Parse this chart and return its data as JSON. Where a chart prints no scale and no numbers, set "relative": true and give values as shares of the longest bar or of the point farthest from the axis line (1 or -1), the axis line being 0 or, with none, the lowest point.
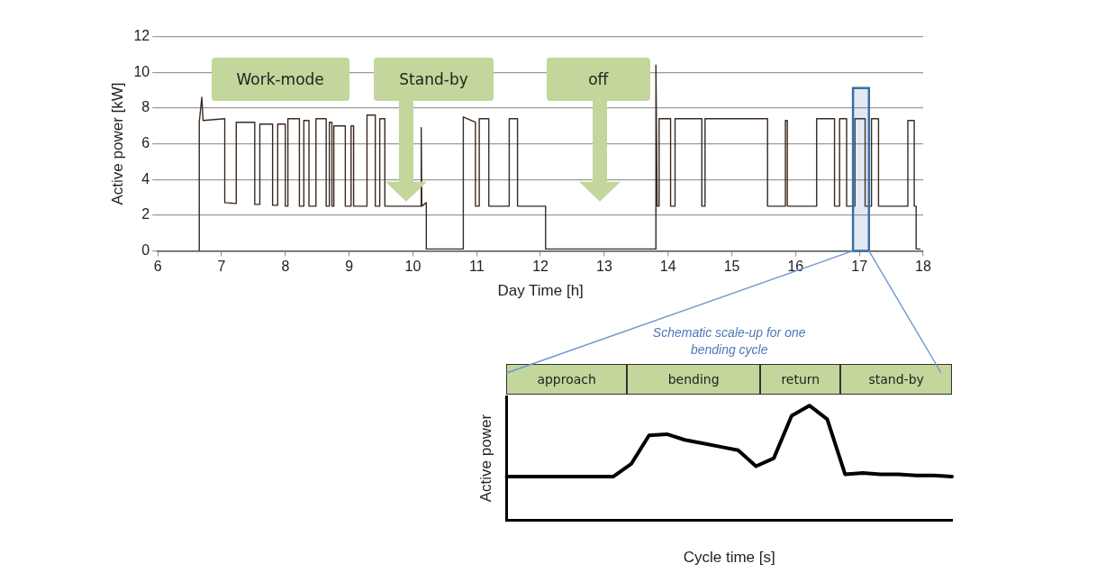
{
  "chart_data": [
    {
      "type": "line",
      "xlabel": "Day Time [h]",
      "ylabel": "Active power [kW]",
      "color": "#3a2a20",
      "marker": "none",
      "grid": "y",
      "xlim": [
        6,
        18
      ],
      "xticks": [
        6,
        7,
        8,
        9,
        10,
        11,
        12,
        13,
        14,
        15,
        16,
        17,
        18
      ],
      "ylim": [
        0,
        12
      ],
      "yticks": [
        0,
        2,
        4,
        6,
        8,
        10,
        12
      ],
      "x": [
        6.65,
        6.65,
        6.69,
        6.71,
        7.05,
        7.05,
        7.23,
        7.23,
        7.52,
        7.52,
        7.6,
        7.6,
        7.8,
        7.8,
        7.88,
        7.88,
        8.0,
        8.0,
        8.04,
        8.04,
        8.22,
        8.22,
        8.29,
        8.29,
        8.37,
        8.37,
        8.48,
        8.48,
        8.64,
        8.64,
        8.69,
        8.69,
        8.73,
        8.73,
        8.76,
        8.76,
        8.94,
        8.94,
        9.03,
        9.03,
        9.07,
        9.07,
        9.28,
        9.28,
        9.41,
        9.41,
        9.48,
        9.48,
        9.56,
        9.56,
        10.13,
        10.13,
        10.14,
        10.21,
        10.21,
        10.79,
        10.79,
        10.98,
        10.98,
        11.04,
        11.04,
        11.19,
        11.19,
        11.51,
        11.51,
        11.64,
        11.64,
        12.08,
        12.08,
        13.81,
        13.81,
        13.83,
        13.86,
        13.86,
        14.04,
        14.04,
        14.11,
        14.11,
        14.53,
        14.53,
        14.58,
        14.58,
        15.56,
        15.56,
        15.84,
        15.84,
        15.87,
        15.87,
        16.33,
        16.33,
        16.61,
        16.61,
        16.69,
        16.69,
        16.8,
        16.8,
        16.93,
        16.93,
        17.09,
        17.09,
        17.19,
        17.19,
        17.3,
        17.3,
        17.76,
        17.76,
        17.86,
        17.86,
        17.89,
        17.89,
        17.95
      ],
      "values": [
        0,
        7.2,
        8.6,
        7.3,
        7.4,
        2.7,
        2.65,
        7.2,
        7.2,
        2.6,
        2.6,
        7.1,
        7.1,
        2.55,
        2.55,
        7.1,
        7.1,
        2.5,
        2.5,
        7.4,
        7.4,
        2.5,
        2.5,
        7.3,
        7.3,
        2.5,
        2.5,
        7.4,
        7.4,
        2.5,
        2.5,
        7.2,
        7.2,
        2.5,
        2.5,
        7.0,
        7.0,
        2.5,
        2.5,
        7.0,
        7.0,
        2.5,
        2.5,
        7.6,
        7.6,
        2.5,
        2.5,
        7.4,
        7.4,
        2.5,
        2.5,
        6.9,
        2.5,
        2.7,
        0.1,
        0.1,
        7.5,
        7.2,
        2.5,
        2.5,
        7.4,
        7.4,
        2.5,
        2.5,
        7.4,
        7.4,
        2.5,
        2.5,
        0.1,
        0.1,
        10.4,
        2.5,
        2.5,
        7.4,
        7.4,
        2.5,
        2.5,
        7.4,
        7.4,
        2.5,
        2.5,
        7.4,
        7.4,
        2.5,
        2.5,
        7.3,
        7.3,
        2.5,
        2.5,
        7.4,
        7.4,
        2.5,
        2.5,
        7.4,
        7.4,
        2.5,
        2.5,
        7.4,
        7.4,
        2.5,
        2.5,
        7.4,
        7.4,
        2.5,
        2.5,
        7.3,
        7.3,
        2.5,
        2.5,
        0.1,
        0.1
      ],
      "bands": [
        {
          "axis": "x",
          "from": 16.9,
          "to": 17.15,
          "color": "#3a6ea5"
        }
      ],
      "annotations": [
        "Work-mode",
        "Stand-by",
        "off"
      ]
    },
    {
      "type": "line",
      "relative": true,
      "title": "Schematic scale-up for one bending cycle",
      "xlabel": "Cycle time [s]",
      "ylabel": "Active power",
      "color": "#000000",
      "marker": "none",
      "categories": [
        null,
        null,
        null,
        null,
        null,
        null,
        null,
        null,
        null,
        null,
        null,
        null,
        null,
        null,
        null,
        null,
        null,
        null,
        null,
        null,
        null,
        null,
        null,
        null,
        null,
        null
      ],
      "values": [
        0.38,
        0.38,
        0.38,
        0.38,
        0.38,
        0.38,
        0.38,
        0.49,
        0.74,
        0.75,
        0.7,
        0.67,
        0.64,
        0.61,
        0.47,
        0.54,
        0.91,
        1,
        0.88,
        0.4,
        0.41,
        0.4,
        0.4,
        0.39,
        0.39,
        0.38
      ],
      "annotations": [
        "approach",
        "bending",
        "return",
        "stand-by"
      ]
    }
  ]
}
